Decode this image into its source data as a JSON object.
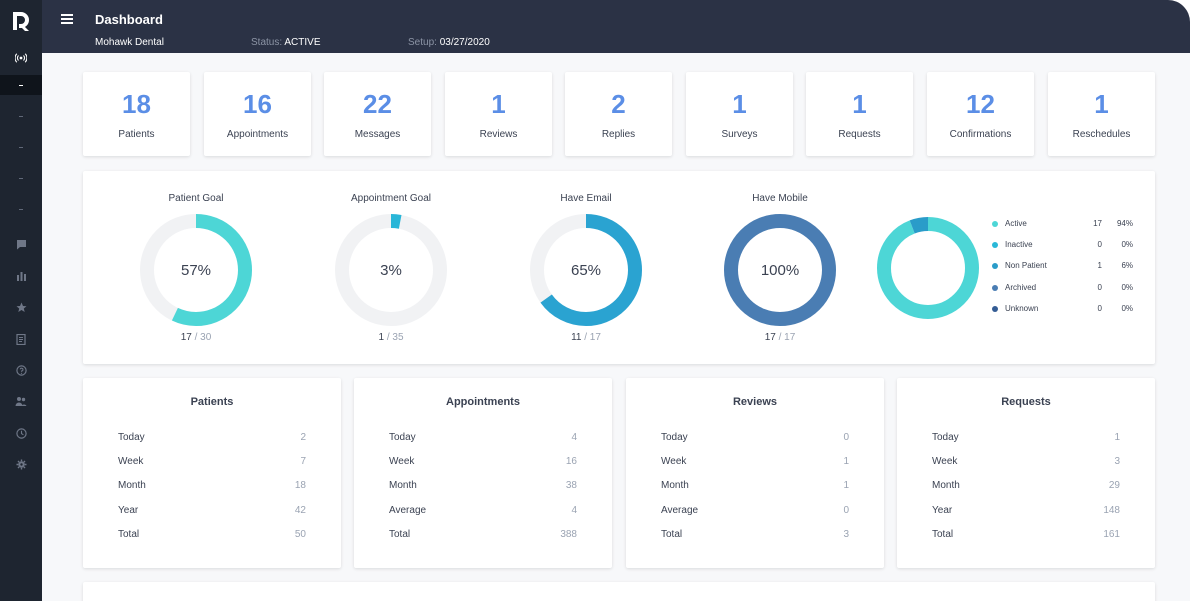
{
  "header": {
    "title": "Dashboard",
    "practice": "Mohawk Dental",
    "status_label": "Status:",
    "status_value": "ACTIVE",
    "setup_label": "Setup:",
    "setup_value": "03/27/2020"
  },
  "sidebar": {
    "icons": [
      "logo-icon",
      "broadcast-icon",
      "chat-icon",
      "bar-chart-icon",
      "star-icon",
      "document-icon",
      "help-icon",
      "users-icon",
      "clock-icon",
      "gear-icon"
    ]
  },
  "stats": [
    {
      "value": "18",
      "label": "Patients"
    },
    {
      "value": "16",
      "label": "Appointments"
    },
    {
      "value": "22",
      "label": "Messages"
    },
    {
      "value": "1",
      "label": "Reviews"
    },
    {
      "value": "2",
      "label": "Replies"
    },
    {
      "value": "1",
      "label": "Surveys"
    },
    {
      "value": "1",
      "label": "Requests"
    },
    {
      "value": "12",
      "label": "Confirmations"
    },
    {
      "value": "1",
      "label": "Reschedules"
    }
  ],
  "goals": [
    {
      "title": "Patient Goal",
      "pct": "57%",
      "num": "17",
      "den": "30",
      "fraction": 0.57,
      "color": "#4dd6d6"
    },
    {
      "title": "Appointment Goal",
      "pct": "3%",
      "num": "1",
      "den": "35",
      "fraction": 0.03,
      "color": "#29b6d8"
    },
    {
      "title": "Have Email",
      "pct": "65%",
      "num": "11",
      "den": "17",
      "fraction": 0.65,
      "color": "#2aa3d1"
    },
    {
      "title": "Have Mobile",
      "pct": "100%",
      "num": "17",
      "den": "17",
      "fraction": 1.0,
      "color": "#4a7db3"
    }
  ],
  "status_chart": {
    "items": [
      {
        "label": "Active",
        "count": "17",
        "pct": "94%",
        "fraction": 0.94,
        "color": "#4dd6d6"
      },
      {
        "label": "Inactive",
        "count": "0",
        "pct": "0%",
        "fraction": 0,
        "color": "#2ab8d8"
      },
      {
        "label": "Non Patient",
        "count": "1",
        "pct": "6%",
        "fraction": 0.06,
        "color": "#2a9cc9"
      },
      {
        "label": "Archived",
        "count": "0",
        "pct": "0%",
        "fraction": 0,
        "color": "#4a7db3"
      },
      {
        "label": "Unknown",
        "count": "0",
        "pct": "0%",
        "fraction": 0,
        "color": "#345c94"
      }
    ]
  },
  "tables": [
    {
      "title": "Patients",
      "rows": [
        {
          "k": "Today",
          "v": "2"
        },
        {
          "k": "Week",
          "v": "7"
        },
        {
          "k": "Month",
          "v": "18"
        },
        {
          "k": "Year",
          "v": "42"
        },
        {
          "k": "Total",
          "v": "50"
        }
      ]
    },
    {
      "title": "Appointments",
      "rows": [
        {
          "k": "Today",
          "v": "4"
        },
        {
          "k": "Week",
          "v": "16"
        },
        {
          "k": "Month",
          "v": "38"
        },
        {
          "k": "Average",
          "v": "4"
        },
        {
          "k": "Total",
          "v": "388"
        }
      ]
    },
    {
      "title": "Reviews",
      "rows": [
        {
          "k": "Today",
          "v": "0"
        },
        {
          "k": "Week",
          "v": "1"
        },
        {
          "k": "Month",
          "v": "1"
        },
        {
          "k": "Average",
          "v": "0"
        },
        {
          "k": "Total",
          "v": "3"
        }
      ]
    },
    {
      "title": "Requests",
      "rows": [
        {
          "k": "Today",
          "v": "1"
        },
        {
          "k": "Week",
          "v": "3"
        },
        {
          "k": "Month",
          "v": "29"
        },
        {
          "k": "Year",
          "v": "148"
        },
        {
          "k": "Total",
          "v": "161"
        }
      ]
    }
  ]
}
